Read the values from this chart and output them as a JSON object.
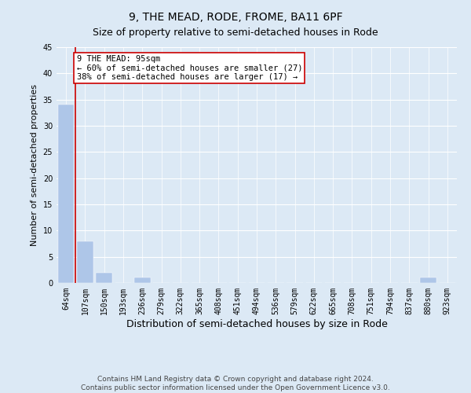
{
  "title": "9, THE MEAD, RODE, FROME, BA11 6PF",
  "subtitle": "Size of property relative to semi-detached houses in Rode",
  "xlabel": "Distribution of semi-detached houses by size in Rode",
  "ylabel": "Number of semi-detached properties",
  "categories": [
    "64sqm",
    "107sqm",
    "150sqm",
    "193sqm",
    "236sqm",
    "279sqm",
    "322sqm",
    "365sqm",
    "408sqm",
    "451sqm",
    "494sqm",
    "536sqm",
    "579sqm",
    "622sqm",
    "665sqm",
    "708sqm",
    "751sqm",
    "794sqm",
    "837sqm",
    "880sqm",
    "923sqm"
  ],
  "values": [
    34,
    8,
    2,
    0,
    1,
    0,
    0,
    0,
    0,
    0,
    0,
    0,
    0,
    0,
    0,
    0,
    0,
    0,
    0,
    1,
    0
  ],
  "bar_color": "#aec6e8",
  "vline_color": "#cc0000",
  "ylim": [
    0,
    45
  ],
  "yticks": [
    0,
    5,
    10,
    15,
    20,
    25,
    30,
    35,
    40,
    45
  ],
  "annotation_text": "9 THE MEAD: 95sqm\n← 60% of semi-detached houses are smaller (27)\n38% of semi-detached houses are larger (17) →",
  "annotation_box_color": "#ffffff",
  "annotation_border_color": "#cc0000",
  "bg_color": "#dce9f5",
  "plot_bg_color": "#dce9f5",
  "footer_line1": "Contains HM Land Registry data © Crown copyright and database right 2024.",
  "footer_line2": "Contains public sector information licensed under the Open Government Licence v3.0.",
  "title_fontsize": 10,
  "subtitle_fontsize": 9,
  "xlabel_fontsize": 9,
  "ylabel_fontsize": 8,
  "tick_fontsize": 7,
  "annotation_fontsize": 7.5,
  "footer_fontsize": 6.5
}
